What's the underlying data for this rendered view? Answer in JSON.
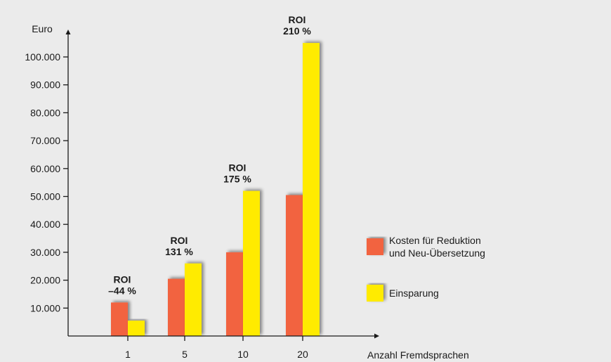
{
  "chart_data": {
    "type": "bar",
    "ylabel": "Euro",
    "xlabel": "Anzahl Fremdsprachen",
    "ylim": [
      0,
      110000
    ],
    "yticks": [
      {
        "value": 10000,
        "label": "10.000"
      },
      {
        "value": 20000,
        "label": "20.000"
      },
      {
        "value": 30000,
        "label": "30.000"
      },
      {
        "value": 40000,
        "label": "40.000"
      },
      {
        "value": 50000,
        "label": "50.000"
      },
      {
        "value": 60000,
        "label": "60.000"
      },
      {
        "value": 70000,
        "label": "70.000"
      },
      {
        "value": 80000,
        "label": "80.000"
      },
      {
        "value": 90000,
        "label": "90.000"
      },
      {
        "value": 100000,
        "label": "100.000"
      }
    ],
    "categories": [
      "1",
      "5",
      "10",
      "20"
    ],
    "series": [
      {
        "name": "Kosten für Reduktion und Neu-Übersetzung",
        "legend_lines": [
          "Kosten für Reduktion",
          "und Neu-Übersetzung"
        ],
        "color": "#f26440",
        "values": [
          12000,
          20500,
          30000,
          50500
        ]
      },
      {
        "name": "Einsparung",
        "legend_lines": [
          "Einsparung"
        ],
        "color": "#ffeb00",
        "values": [
          5500,
          26000,
          52000,
          105000
        ]
      }
    ],
    "annotations": [
      {
        "category": "1",
        "lines": [
          "ROI",
          "–44 %"
        ]
      },
      {
        "category": "5",
        "lines": [
          "ROI",
          "131 %"
        ]
      },
      {
        "category": "10",
        "lines": [
          "ROI",
          "175 %"
        ]
      },
      {
        "category": "20",
        "lines": [
          "ROI",
          "210 %"
        ]
      }
    ],
    "legend_position": "right",
    "grid": false
  }
}
